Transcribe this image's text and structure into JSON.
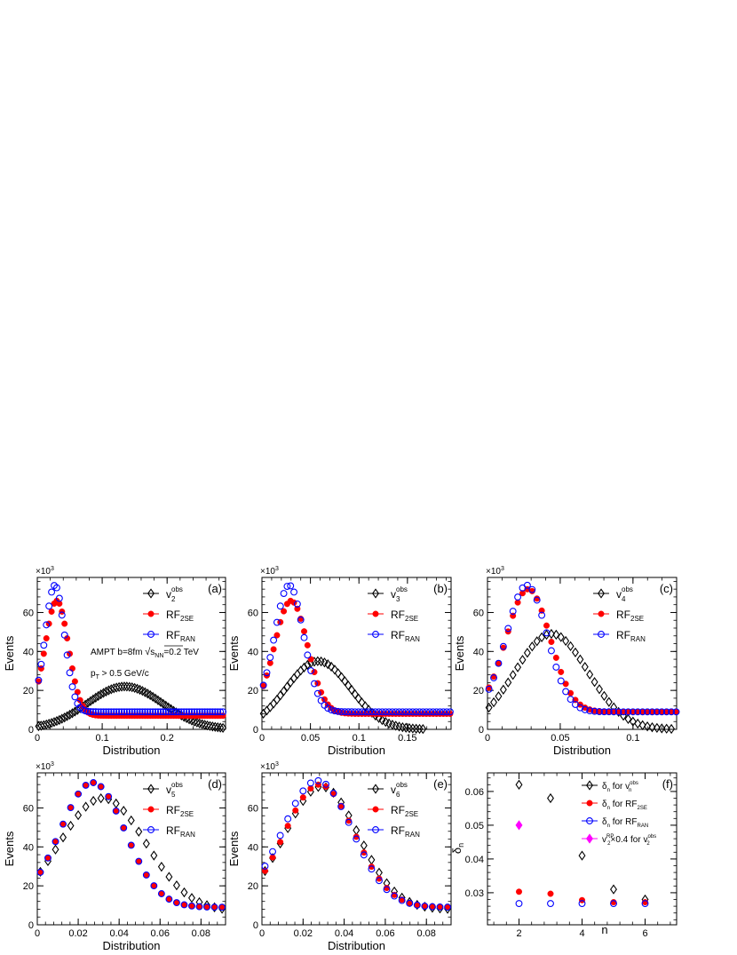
{
  "figure": {
    "xlabel": "Distribution",
    "ylabel": "Events",
    "multiplier_base": "×10",
    "multiplier_exp": "3",
    "annotations": {
      "ampt_pre": "AMPT b=8fm ",
      "ampt_s": "s",
      "ampt_nn": "NN",
      "ampt_post": "=0.2 TeV",
      "pt_main": "p",
      "pt_sub": "T",
      "pt_rest": " > 0.5 GeV/c"
    },
    "legend_common": {
      "v": "v",
      "obs": "obs",
      "rf": "RF",
      "sub_2se": "2SE",
      "sub_ran": "RAN"
    },
    "f_panel": {
      "ylabel_main": "δ",
      "ylabel_sub": "n",
      "xlabel": "n",
      "legend": [
        {
          "pre": "δ",
          "sub1": "n",
          "mid": " for v",
          "sub2": "n",
          "sup2": "obs"
        },
        {
          "pre": "δ",
          "sub1": "n",
          "mid": " for RF",
          "sub2": "2SE"
        },
        {
          "pre": "δ",
          "sub1": "n",
          "mid": " for RF",
          "sub2": "RAN"
        },
        {
          "pre": "v",
          "sub1": "2",
          "sup1": "RP",
          "mid": "×0.4 for v",
          "sub2": "2",
          "sup2": "obs"
        }
      ]
    }
  },
  "colors": {
    "obs": "#000000",
    "rf2se": "#ff0000",
    "rfran": "#0000ff",
    "rp": "#ff00ff"
  },
  "chart_data": [
    {
      "panel": "(a)",
      "type": "scatter",
      "harmonic": "2",
      "xlabel": "Distribution",
      "ylabel": "Events",
      "y_multiplier": "×10^3",
      "xlim": [
        0,
        0.29
      ],
      "ylim": [
        0,
        78
      ],
      "xticks": [
        0,
        0.1,
        0.2
      ],
      "xtick_labels": [
        "0",
        "0.1",
        "0.2"
      ],
      "yticks": [
        0,
        20,
        40,
        60
      ],
      "ytick_labels": [
        "0",
        "20",
        "40",
        "60"
      ],
      "obs": {
        "peak_x": 0.135,
        "peak_y": 22,
        "sigma": 0.058,
        "y0": 0
      },
      "rf2se": {
        "peak_x": 0.03,
        "peak_y": 66,
        "sigma": 0.018,
        "y0": 7
      },
      "rfran": {
        "peak_x": 0.027,
        "peak_y": 74,
        "sigma": 0.015,
        "y0": 9
      },
      "x_first": 0.002,
      "x_step": 0.004
    },
    {
      "panel": "(b)",
      "type": "scatter",
      "harmonic": "3",
      "xlabel": "Distribution",
      "ylabel": "Events",
      "y_multiplier": "×10^3",
      "xlim": [
        0,
        0.195
      ],
      "ylim": [
        0,
        78
      ],
      "xticks": [
        0,
        0.05,
        0.1,
        0.15
      ],
      "xtick_labels": [
        "0",
        "0.05",
        "0.1",
        "0.15"
      ],
      "yticks": [
        0,
        20,
        40,
        60
      ],
      "ytick_labels": [
        "0",
        "20",
        "40",
        "60"
      ],
      "obs": {
        "peak_x": 0.058,
        "peak_y": 35,
        "sigma": 0.033,
        "y0": 0
      },
      "rf2se": {
        "peak_x": 0.03,
        "peak_y": 66,
        "sigma": 0.017,
        "y0": 8
      },
      "rfran": {
        "peak_x": 0.028,
        "peak_y": 74,
        "sigma": 0.015,
        "y0": 9
      },
      "x_first": 0.0015,
      "x_step": 0.0035
    },
    {
      "panel": "(c)",
      "type": "scatter",
      "harmonic": "4",
      "xlabel": "Distribution",
      "ylabel": "Events",
      "y_multiplier": "×10^3",
      "xlim": [
        0,
        0.13
      ],
      "ylim": [
        0,
        78
      ],
      "xticks": [
        0,
        0.05,
        0.1
      ],
      "xtick_labels": [
        "0",
        "0.05",
        "0.1"
      ],
      "yticks": [
        0,
        20,
        40,
        60
      ],
      "ytick_labels": [
        "0",
        "20",
        "40",
        "60"
      ],
      "obs": {
        "peak_x": 0.044,
        "peak_y": 49,
        "sigma": 0.025,
        "y0": 0
      },
      "rf2se": {
        "peak_x": 0.028,
        "peak_y": 72,
        "sigma": 0.015,
        "y0": 9
      },
      "rfran": {
        "peak_x": 0.027,
        "peak_y": 74,
        "sigma": 0.014,
        "y0": 9
      },
      "x_first": 0.001,
      "x_step": 0.0033
    },
    {
      "panel": "(d)",
      "type": "scatter",
      "harmonic": "5",
      "xlabel": "Distribution",
      "ylabel": "Events",
      "y_multiplier": "×10^3",
      "xlim": [
        0,
        0.092
      ],
      "ylim": [
        0,
        78
      ],
      "xticks": [
        0,
        0.02,
        0.04,
        0.06,
        0.08
      ],
      "xtick_labels": [
        "0",
        "0.02",
        "0.04",
        "0.06",
        "0.08"
      ],
      "yticks": [
        0,
        20,
        40,
        60
      ],
      "ytick_labels": [
        "0",
        "20",
        "40",
        "60"
      ],
      "obs": {
        "peak_x": 0.032,
        "peak_y": 65,
        "sigma": 0.021,
        "y0": 7
      },
      "rf2se": {
        "peak_x": 0.027,
        "peak_y": 73,
        "sigma": 0.016,
        "y0": 9
      },
      "rfran": {
        "peak_x": 0.027,
        "peak_y": 73,
        "sigma": 0.016,
        "y0": 9
      },
      "x_first": 0.0015,
      "x_step": 0.0037
    },
    {
      "panel": "(e)",
      "type": "scatter",
      "harmonic": "6",
      "xlabel": "Distribution",
      "ylabel": "Events",
      "y_multiplier": "×10^3",
      "xlim": [
        0,
        0.092
      ],
      "ylim": [
        0,
        78
      ],
      "xticks": [
        0,
        0.02,
        0.04,
        0.06,
        0.08
      ],
      "xtick_labels": [
        "0",
        "0.02",
        "0.04",
        "0.06",
        "0.08"
      ],
      "yticks": [
        0,
        20,
        40,
        60
      ],
      "ytick_labels": [
        "0",
        "20",
        "40",
        "60"
      ],
      "obs": {
        "peak_x": 0.029,
        "peak_y": 71,
        "sigma": 0.018,
        "y0": 8
      },
      "rf2se": {
        "peak_x": 0.028,
        "peak_y": 72,
        "sigma": 0.017,
        "y0": 9
      },
      "rfran": {
        "peak_x": 0.027,
        "peak_y": 74,
        "sigma": 0.017,
        "y0": 9
      },
      "x_first": 0.0015,
      "x_step": 0.0037
    },
    {
      "panel": "(f)",
      "type": "scatter",
      "xlabel": "n",
      "ylabel": "δn",
      "xlim": [
        1,
        7
      ],
      "ylim": [
        0.0205,
        0.0655
      ],
      "xticks": [
        2,
        4,
        6
      ],
      "xtick_labels": [
        "2",
        "4",
        "6"
      ],
      "yticks": [
        0.03,
        0.04,
        0.05,
        0.06
      ],
      "ytick_labels": [
        "0.03",
        "0.04",
        "0.05",
        "0.06"
      ],
      "series": [
        {
          "name": "δn for vn obs",
          "marker": "diamond-open",
          "color": "#000000",
          "x": [
            2,
            3,
            4,
            5,
            6
          ],
          "y": [
            0.062,
            0.058,
            0.041,
            0.031,
            0.028
          ]
        },
        {
          "name": "δn for RF2SE",
          "marker": "circle-filled",
          "color": "#ff0000",
          "x": [
            2,
            3,
            4,
            5,
            6
          ],
          "y": [
            0.0303,
            0.0297,
            0.0278,
            0.0272,
            0.0272
          ]
        },
        {
          "name": "δn for RFRAN",
          "marker": "circle-open",
          "color": "#0000ff",
          "x": [
            2,
            3,
            4,
            5,
            6
          ],
          "y": [
            0.0268,
            0.0268,
            0.0268,
            0.0268,
            0.0268
          ]
        },
        {
          "name": "v2 RP ×0.4 for v2 obs",
          "marker": "diamond-filled",
          "color": "#ff00ff",
          "x": [
            2
          ],
          "y": [
            0.05
          ]
        }
      ]
    }
  ]
}
